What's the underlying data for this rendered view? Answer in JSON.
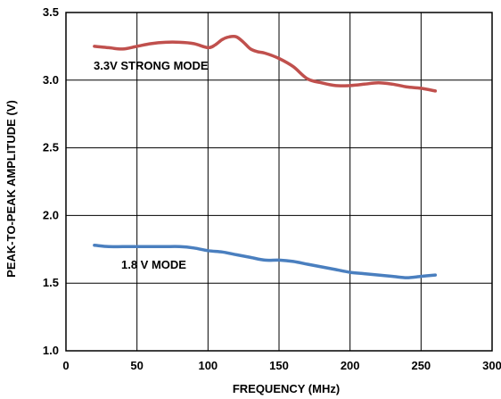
{
  "chart_data": {
    "type": "line",
    "xlabel": "FREQUENCY (MHz)",
    "ylabel": "PEAK-TO-PEAK AMPLITUDE (V)",
    "xlim": [
      0,
      300
    ],
    "ylim": [
      1.0,
      3.5
    ],
    "x_ticks": [
      0,
      50,
      100,
      150,
      200,
      250,
      300
    ],
    "x_tick_labels": [
      "0",
      "50",
      "100",
      "150",
      "200",
      "250",
      "300"
    ],
    "y_ticks": [
      1.0,
      1.5,
      2.0,
      2.5,
      3.0,
      3.5
    ],
    "y_tick_labels": [
      "1.0",
      "1.5",
      "2.0",
      "2.5",
      "3.0",
      "3.5"
    ],
    "grid": true,
    "series": [
      {
        "name": "3.3V STRONG MODE",
        "color": "#c0504d",
        "x": [
          20,
          30,
          40,
          50,
          60,
          70,
          80,
          90,
          100,
          105,
          110,
          115,
          120,
          125,
          130,
          135,
          140,
          150,
          160,
          170,
          180,
          190,
          200,
          210,
          220,
          230,
          240,
          250,
          260
        ],
        "y": [
          3.25,
          3.24,
          3.23,
          3.25,
          3.27,
          3.28,
          3.28,
          3.27,
          3.24,
          3.26,
          3.3,
          3.32,
          3.32,
          3.28,
          3.23,
          3.21,
          3.2,
          3.16,
          3.1,
          3.01,
          2.98,
          2.96,
          2.96,
          2.97,
          2.98,
          2.97,
          2.95,
          2.94,
          2.92
        ]
      },
      {
        "name": "1.8 V MODE",
        "color": "#4a7fbf",
        "x": [
          20,
          30,
          40,
          50,
          60,
          70,
          80,
          90,
          100,
          110,
          120,
          130,
          140,
          150,
          160,
          170,
          180,
          190,
          200,
          210,
          220,
          230,
          240,
          250,
          260
        ],
        "y": [
          1.78,
          1.77,
          1.77,
          1.77,
          1.77,
          1.77,
          1.77,
          1.76,
          1.74,
          1.73,
          1.71,
          1.69,
          1.67,
          1.67,
          1.66,
          1.64,
          1.62,
          1.6,
          1.58,
          1.57,
          1.56,
          1.55,
          1.54,
          1.55,
          1.56
        ]
      }
    ],
    "annotations": [
      {
        "text": "3.3V STRONG MODE",
        "series": 0
      },
      {
        "text": "1.8 V MODE",
        "series": 1
      }
    ]
  }
}
